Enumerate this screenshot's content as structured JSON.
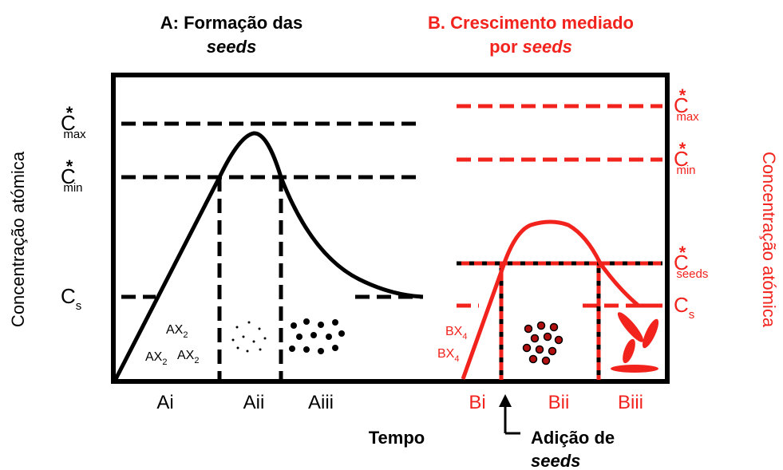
{
  "panel_a": {
    "title_line1": "A: Formação das",
    "title_line2": "seeds",
    "levels": [
      {
        "base": "C",
        "sup": "*",
        "sub": "max"
      },
      {
        "base": "C",
        "sup": "*",
        "sub": "min"
      },
      {
        "base": "C",
        "sub": "s"
      }
    ],
    "regions": [
      "Ai",
      "Aii",
      "Aiii"
    ],
    "species": [
      {
        "base": "AX",
        "sub": "2"
      },
      {
        "base": "AX",
        "sub": "2"
      },
      {
        "base": "AX",
        "sub": "2"
      }
    ]
  },
  "panel_b": {
    "title_line1": "B. Crescimento mediado",
    "title_line2_prefix": "por",
    "title_line2_italic": "seeds",
    "levels": [
      {
        "base": "C",
        "sup": "*",
        "sub": "max"
      },
      {
        "base": "C",
        "sup": "*",
        "sub": "min"
      },
      {
        "base": "C",
        "sup": "*",
        "sub": "seeds"
      },
      {
        "base": "C",
        "sub": "s"
      }
    ],
    "regions": [
      "Bi",
      "Bii",
      "Biii"
    ],
    "species": [
      {
        "base": "BX",
        "sub": "4"
      },
      {
        "base": "BX",
        "sub": "4"
      }
    ]
  },
  "y_axis_left": "Concentração atómica",
  "y_axis_right": "Concentração atómica",
  "x_axis": "Tempo",
  "annotation": {
    "line1": "Adição de",
    "line2": "seeds"
  }
}
